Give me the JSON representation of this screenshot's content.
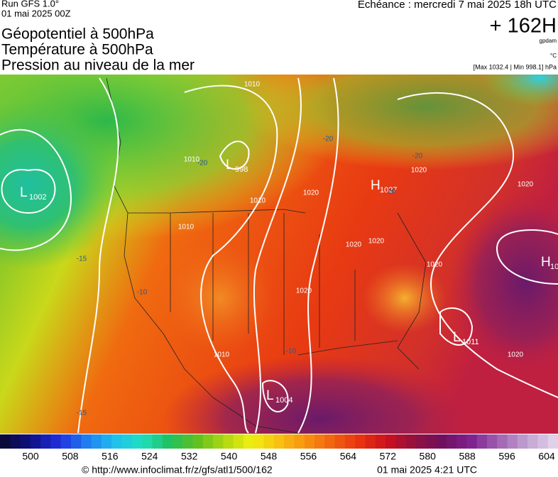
{
  "header": {
    "run": "Run GFS 1.0°",
    "run_date": "01 mai 2025 00Z",
    "echeance": "Echéance : mercredi 7 mai 2025 18h UTC",
    "lead": "+ 162H",
    "unit_geo": "gpdam",
    "unit_temp": "°C",
    "range": "[Max 1032.4 | Min 998.1] hPa"
  },
  "titles": [
    "Géopotentiel à 500hPa",
    "Température à 500hPa",
    "Pression au niveau de la mer"
  ],
  "centers": [
    {
      "type": "L",
      "value": "1002"
    },
    {
      "type": "L",
      "value": "998"
    },
    {
      "type": "H",
      "value": "1027"
    },
    {
      "type": "L",
      "value": "1011"
    },
    {
      "type": "L",
      "value": "1004"
    },
    {
      "type": "H",
      "value": "10"
    }
  ],
  "isobar_labels": [
    "1010",
    "1010",
    "1010",
    "1010",
    "1020",
    "1020",
    "1020",
    "1020",
    "1020",
    "1020",
    "1010",
    "1020",
    "1020"
  ],
  "temp_labels": [
    "-20",
    "-20",
    "-20",
    "-20",
    "-15",
    "-10",
    "-15",
    "-10"
  ],
  "colorbar_ticks": [
    "500",
    "508",
    "516",
    "524",
    "532",
    "540",
    "548",
    "556",
    "564",
    "572",
    "580",
    "588",
    "596",
    "604"
  ],
  "footer": {
    "url": "© http://www.infoclimat.fr/z/gfs/atl1/500/162",
    "generated": "01 mai 2025  4:21 UTC"
  }
}
